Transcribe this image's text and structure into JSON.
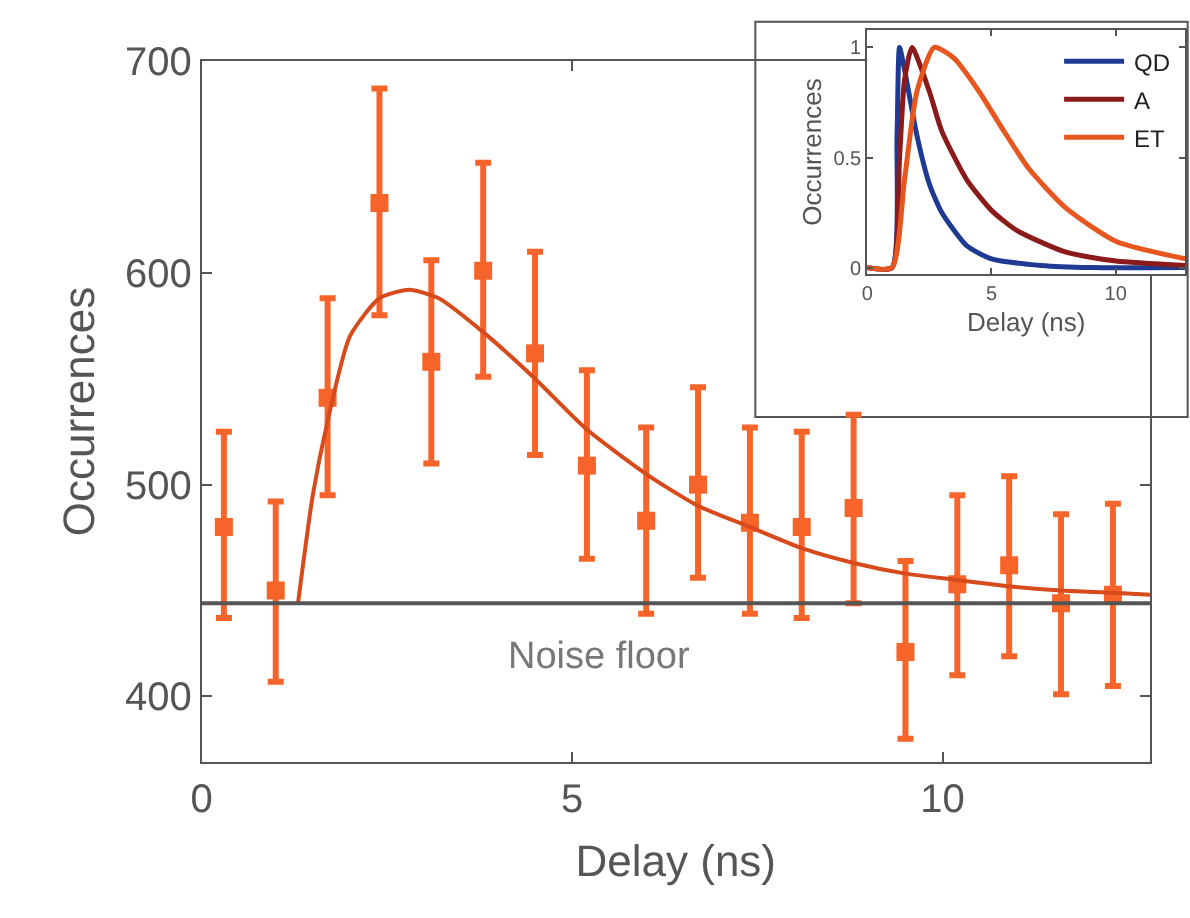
{
  "chart_data": [
    {
      "type": "scatter",
      "xlabel": "Delay (ns)",
      "ylabel": "Occurrences",
      "xlim": [
        0,
        12.8
      ],
      "xticks": [
        0,
        5,
        10
      ],
      "ylim": [
        369,
        700
      ],
      "yticks": [
        400,
        500,
        600,
        700
      ],
      "legend": false,
      "series": [
        {
          "type": "scatter",
          "marker": "square",
          "color": "#f7642a",
          "x": [
            0.3,
            1.0,
            1.7,
            2.4,
            3.1,
            3.8,
            4.5,
            5.2,
            6.0,
            6.7,
            7.4,
            8.1,
            8.8,
            9.5,
            10.2,
            10.9,
            11.6,
            12.3
          ],
          "values": [
            480,
            450,
            541,
            633,
            558,
            601,
            562,
            509,
            483,
            500,
            482,
            480,
            489,
            421,
            453,
            462,
            444,
            448
          ],
          "errors": [
            [
              437,
              525
            ],
            [
              407,
              492
            ],
            [
              495,
              588
            ],
            [
              580,
              687
            ],
            [
              510,
              606
            ],
            [
              551,
              652
            ],
            [
              514,
              610
            ],
            [
              465,
              554
            ],
            [
              439,
              527
            ],
            [
              456,
              546
            ],
            [
              439,
              527
            ],
            [
              437,
              525
            ],
            [
              444,
              533
            ],
            [
              380,
              464
            ],
            [
              410,
              495
            ],
            [
              419,
              504
            ],
            [
              401,
              486
            ],
            [
              405,
              491
            ]
          ]
        },
        {
          "type": "line",
          "color": "#d64a1c",
          "x": [
            1.3,
            1.5,
            1.7,
            2.0,
            2.4,
            2.8,
            3.2,
            3.8,
            4.5,
            5.2,
            6.0,
            6.7,
            7.4,
            8.1,
            8.8,
            9.5,
            10.2,
            10.9,
            11.6,
            12.3,
            12.8
          ],
          "values": [
            444,
            495,
            530,
            570,
            588,
            592,
            588,
            572,
            550,
            526,
            505,
            490,
            480,
            470,
            463,
            458,
            455,
            452,
            450,
            449,
            448
          ]
        }
      ],
      "ref_lines": [
        {
          "axis": "y",
          "value": 444,
          "label": "Noise floor",
          "color": "#555555"
        }
      ]
    },
    {
      "type": "line",
      "xlabel": "Delay (ns)",
      "ylabel": "Occurrences",
      "xlim": [
        0,
        12.8
      ],
      "xticks": [
        0,
        5,
        10
      ],
      "ylim": [
        -0.03,
        1.08
      ],
      "yticks": [
        0,
        0.5,
        1
      ],
      "legend": "top right",
      "series": [
        {
          "name": "QD",
          "color": "#1f3a93",
          "x": [
            0,
            1.0,
            1.2,
            1.3,
            1.5,
            2.0,
            2.5,
            3.0,
            4.0,
            5.0,
            7.0,
            9.0,
            12.8
          ],
          "values": [
            0,
            0,
            0.6,
            1.0,
            0.9,
            0.6,
            0.38,
            0.25,
            0.1,
            0.04,
            0.01,
            0,
            0
          ]
        },
        {
          "name": "A",
          "color": "#8b1a1a",
          "x": [
            0,
            1.0,
            1.3,
            1.5,
            1.8,
            2.5,
            3.0,
            4.0,
            5.0,
            6.0,
            8.0,
            10.0,
            12.8
          ],
          "values": [
            0,
            0,
            0.5,
            0.85,
            1.0,
            0.8,
            0.62,
            0.4,
            0.26,
            0.17,
            0.07,
            0.03,
            0.01
          ]
        },
        {
          "name": "ET",
          "color": "#e8561f",
          "x": [
            0,
            1.0,
            1.5,
            2.0,
            2.7,
            3.5,
            4.5,
            5.5,
            6.5,
            8.0,
            10.0,
            12.8
          ],
          "values": [
            0,
            0,
            0.4,
            0.8,
            1.0,
            0.95,
            0.8,
            0.62,
            0.45,
            0.27,
            0.12,
            0.04
          ]
        }
      ]
    }
  ]
}
